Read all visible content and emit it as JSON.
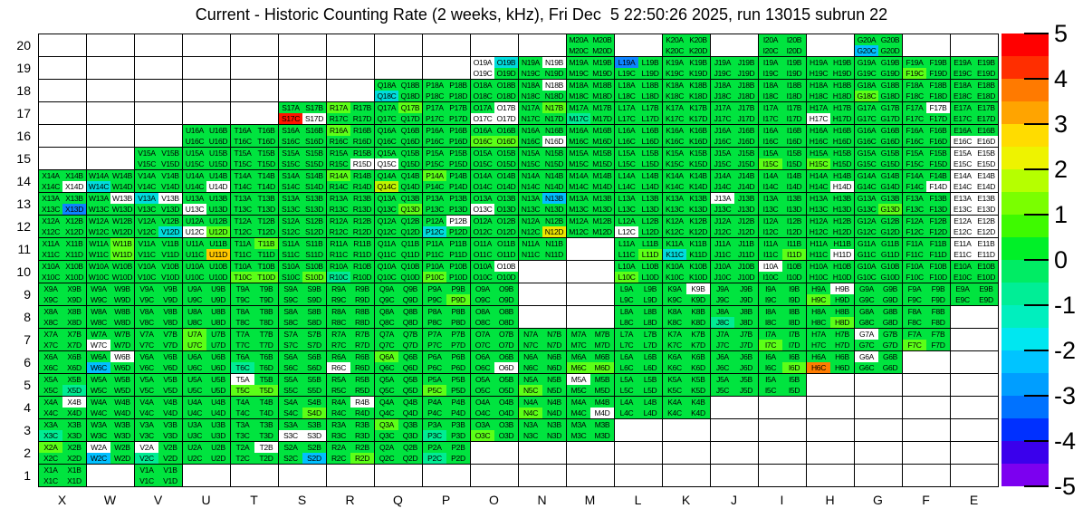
{
  "chart_data": {
    "type": "heatmap",
    "title": "Current - Historic Counting Rate (2 weeks, kHz), Fri Dec  5 22:50:26 2025, run 13015 subrun 22",
    "x_categories": [
      "X",
      "W",
      "V",
      "U",
      "T",
      "S",
      "R",
      "Q",
      "P",
      "O",
      "N",
      "M",
      "L",
      "K",
      "J",
      "I",
      "H",
      "G",
      "F",
      "E"
    ],
    "y_categories": [
      "20",
      "19",
      "18",
      "17",
      "16",
      "15",
      "14",
      "13",
      "12",
      "11",
      "10",
      "9",
      "8",
      "7",
      "6",
      "5",
      "4",
      "3",
      "2",
      "1"
    ],
    "subcell_suffixes": [
      "A",
      "B",
      "C",
      "D"
    ],
    "subcell_layout": "A=top-left, B=top-right, C=bottom-left, D=bottom-right; label = column + row + suffix",
    "palette": {
      "G": "#00E43F",
      "L": "#5CFF17",
      "A": "#BFF400",
      "Y": "#EDE600",
      "D": "#FFC800",
      "T": "#00EC93",
      "C": "#00DCDC",
      "S": "#00C0FF",
      "B": "#0D84FF",
      "R": "#FF1500",
      "O": "#FF7C00",
      "W": "#FFFFFF",
      ".": "#FFFFFF"
    },
    "code_values": {
      "G": 0,
      "L": 0.7,
      "A": 1.5,
      "Y": 2.5,
      "D": 3.2,
      "O": 4,
      "R": 5,
      "T": -0.7,
      "C": -1.6,
      "S": -2.3,
      "B": -3.3,
      "W": "white (labeled, no rate)",
      ".": "empty cell"
    },
    "cells": {
      "20": [
        "....",
        "....",
        "....",
        "....",
        "....",
        "....",
        "....",
        "....",
        "....",
        "....",
        "....",
        "GGGG",
        "....",
        "GGGG",
        "....",
        "GGGG",
        "....",
        "GGSG",
        "....",
        "...."
      ],
      "19": [
        "....",
        "....",
        "....",
        "....",
        "....",
        "....",
        "....",
        "....",
        "....",
        "WCWG",
        "GWGG",
        "GGGG",
        "BGGG",
        "GGGG",
        "GGGG",
        "GGGG",
        "GGGG",
        "GGGG",
        "GGLG",
        "GGGG"
      ],
      "18": [
        "....",
        "....",
        "....",
        "....",
        "....",
        "....",
        "....",
        "GGCG",
        "GGGG",
        "GGGG",
        "GWGG",
        "GGGG",
        "GGGG",
        "GGGG",
        "GGGG",
        "GGGG",
        "GGGG",
        "GGLG",
        "GGGG",
        "GGGG"
      ],
      "17": [
        "....",
        "....",
        "....",
        "....",
        "....",
        "GGRW",
        "LGGG",
        "GLGG",
        "GGGG",
        "GWWW",
        "GLGG",
        "GGTG",
        "GGGG",
        "GGGG",
        "GGGG",
        "GGGG",
        "GGWG",
        "GGGG",
        "GWGG",
        "GGGG"
      ],
      "16": [
        "....",
        "....",
        "....",
        "GGGG",
        "GGGG",
        "GGGG",
        "LGGG",
        "GGGG",
        "GGGG",
        "GGLL",
        "GGGW",
        "GGGG",
        "GGGG",
        "GGGG",
        "GGGG",
        "GGGG",
        "GGGG",
        "GGGG",
        "GGGG",
        "GGWW"
      ],
      "15": [
        "....",
        "....",
        "GGGG",
        "GGGG",
        "GGGG",
        "GGGG",
        "GGGW",
        "GGWG",
        "GGGG",
        "GGGG",
        "GGGG",
        "GGGG",
        "GGGG",
        "GGGG",
        "GGGG",
        "GGLG",
        "GGLG",
        "GGGG",
        "GGGG",
        "WWWW"
      ],
      "14": [
        "GGGW",
        "GGCG",
        "GGGG",
        "GGGW",
        "GGGG",
        "GGGG",
        "LGGG",
        "GGAG",
        "LGGG",
        "GGGG",
        "GGGG",
        "GGGG",
        "GGGG",
        "GGGG",
        "GGGG",
        "GGGG",
        "GGGW",
        "GGGG",
        "GGGW",
        "WWWW"
      ],
      "13": [
        "GGGB",
        "GWGG",
        "CWGG",
        "GGWG",
        "GGGG",
        "GGGG",
        "GGGG",
        "GGGL",
        "GGGG",
        "GGWG",
        "GSGG",
        "GGGG",
        "GGGG",
        "GGGG",
        "WGGG",
        "GGGG",
        "GGGG",
        "GGGL",
        "GGGG",
        "WWWW"
      ],
      "12": [
        "GGGG",
        "GGGG",
        "GGGC",
        "GGWL",
        "GGGG",
        "GGGG",
        "GGGG",
        "GGGG",
        "GWCG",
        "GGGG",
        "GGGY",
        "GGGG",
        "GGWG",
        "GGGG",
        "GGGG",
        "GGGG",
        "GGGG",
        "GGGG",
        "GGGG",
        "WWWW"
      ],
      "11": [
        "GGGG",
        "GLGL",
        "GGGG",
        "GGGD",
        "GLGG",
        "GGGG",
        "GGGG",
        "GGGG",
        "GGGG",
        "GGGG",
        "GGGG",
        "....",
        "GGGL",
        "GGCG",
        "GGGG",
        "GGGL",
        "GGGW",
        "GGGG",
        "GGGG",
        "WWWW"
      ],
      "10": [
        "GGGG",
        "GGGG",
        "GGGG",
        "GGGG",
        "GGLL",
        "GGGL",
        "GGTG",
        "GGGG",
        "GGLG",
        "GWGG",
        "....",
        "....",
        "GGLG",
        "GGGG",
        "GGGG",
        "WGGG",
        "GGGG",
        "GGGG",
        "GGGG",
        "GGGG"
      ],
      "9": [
        "GGGG",
        "GGGG",
        "GGGG",
        "GGGG",
        "GGGG",
        "GGGG",
        "GGGG",
        "GGGG",
        "GGGL",
        "GGGG",
        "....",
        "....",
        "GGGG",
        "GWGG",
        "GGGG",
        "GGGG",
        "GWLG",
        "GGGG",
        "GGGG",
        "GGGG"
      ],
      "8": [
        "GGGG",
        "GGGG",
        "GGGG",
        "GGGG",
        "GGGG",
        "GGGG",
        "GGGG",
        "GGGG",
        "GGGG",
        "GGGG",
        "....",
        "....",
        "GGGG",
        "GGGG",
        "GGTG",
        "GGGG",
        "GGGL",
        "GGGG",
        "GGGG",
        "...."
      ],
      "7": [
        "GGGG",
        "GGWG",
        "GGGG",
        "LGLG",
        "GGGG",
        "GGGG",
        "GGGG",
        "GGGG",
        "GGGG",
        "GGGG",
        "GGGG",
        "GGGG",
        "GGGG",
        "GGGG",
        "GGGG",
        "GGLG",
        "GGGG",
        "WGGG",
        "GGLG",
        "...."
      ],
      "6": [
        "GGGG",
        "GWSG",
        "GGGG",
        "GGGG",
        "GGTG",
        "GGGG",
        "GGWG",
        "LGGG",
        "GGGG",
        "GGGW",
        "GGGG",
        "GGLL",
        "GGGG",
        "GGGG",
        "GGGG",
        "GGGL",
        "GGOG",
        "WGGG",
        "....",
        "...."
      ],
      "5": [
        "GGGT",
        "GGGG",
        "GGGG",
        "GGGG",
        "WGLL",
        "GGGG",
        "GGGG",
        "GGGG",
        "GGLG",
        "GGGG",
        "GGLG",
        "WGGG",
        "GGGG",
        "GGGG",
        "GGGG",
        "GGGG",
        "....",
        "....",
        "....",
        "...."
      ],
      "4": [
        "GWGG",
        "GGGG",
        "GGGG",
        "GGGG",
        "GGGG",
        "GGGL",
        "GWGG",
        "GGGG",
        "GGGG",
        "GGGG",
        "GGLG",
        "GGGW",
        "GGGG",
        "GGGG",
        "....",
        "....",
        "....",
        "....",
        "....",
        "...."
      ],
      "3": [
        "GGTG",
        "GGGG",
        "GGGG",
        "GGGG",
        "GGGG",
        "GGWW",
        "GGGG",
        "LGGG",
        "GGTG",
        "GGLG",
        "GGGG",
        "GGGG",
        "....",
        "....",
        "....",
        "....",
        "....",
        "....",
        "....",
        "...."
      ],
      "2": [
        "LGGG",
        "WGSG",
        "WGTG",
        "GGGG",
        "GWGG",
        "GGGS",
        "GGGL",
        "GGGG",
        "GGTG",
        "....",
        "....",
        "....",
        "....",
        "....",
        "....",
        "....",
        "....",
        "....",
        "....",
        "...."
      ],
      "1": [
        "GGGG",
        "....",
        "GGGG",
        "....",
        "....",
        "....",
        "....",
        "....",
        "....",
        "....",
        "....",
        "....",
        "....",
        "....",
        "....",
        "....",
        "....",
        "....",
        "....",
        "...."
      ]
    },
    "colorbar": {
      "min": -5,
      "max": 5,
      "ticks": [
        "5",
        "4",
        "3",
        "2",
        "1",
        "0",
        "-1",
        "-2",
        "-3",
        "-4",
        "-5"
      ],
      "segments": [
        "#FF0000",
        "#FF2E00",
        "#FF7A00",
        "#FFA400",
        "#FFDC00",
        "#EEF300",
        "#B6FF00",
        "#7AFF00",
        "#3EFA00",
        "#00F028",
        "#00EC64",
        "#00EE96",
        "#00EFBE",
        "#00E7F0",
        "#00C4FF",
        "#009EFF",
        "#0072FF",
        "#0030FF",
        "#3A00EC",
        "#7C00F0"
      ]
    }
  }
}
